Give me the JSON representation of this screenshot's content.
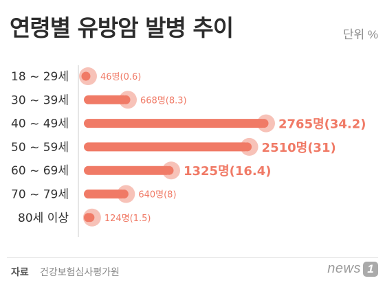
{
  "title": "연령별 유방암 발병 추이",
  "unit_label": "단위  %",
  "source_label": "자료",
  "source_text": "건강보험심사평가원",
  "logo": {
    "text": "news",
    "badge": "1"
  },
  "colors": {
    "bar": "#f07a66",
    "halo": "#f7c2b8",
    "axis": "#cccccc",
    "category_text": "#333333"
  },
  "chart_data": {
    "type": "bar",
    "orientation": "horizontal",
    "categories": [
      "18 ~ 29세",
      "30 ~ 39세",
      "40 ~ 49세",
      "50 ~ 59세",
      "60 ~ 69세",
      "70 ~ 79세",
      "80세 이상"
    ],
    "series": [
      {
        "values": [
          46,
          668,
          2765,
          2510,
          1325,
          640,
          124
        ]
      }
    ],
    "percent": [
      0.6,
      8.3,
      34.2,
      31,
      16.4,
      8,
      1.5
    ],
    "data_labels": [
      "46명(0.6)",
      "668명(8.3)",
      "2765명(34.2)",
      "2510명(31)",
      "1325명(16.4)",
      "640명(8)",
      "124명(1.5)"
    ],
    "emphasized": [
      false,
      false,
      true,
      true,
      true,
      false,
      false
    ],
    "title": "연령별 유방암 발병 추이",
    "xlabel": "",
    "ylabel": ""
  }
}
